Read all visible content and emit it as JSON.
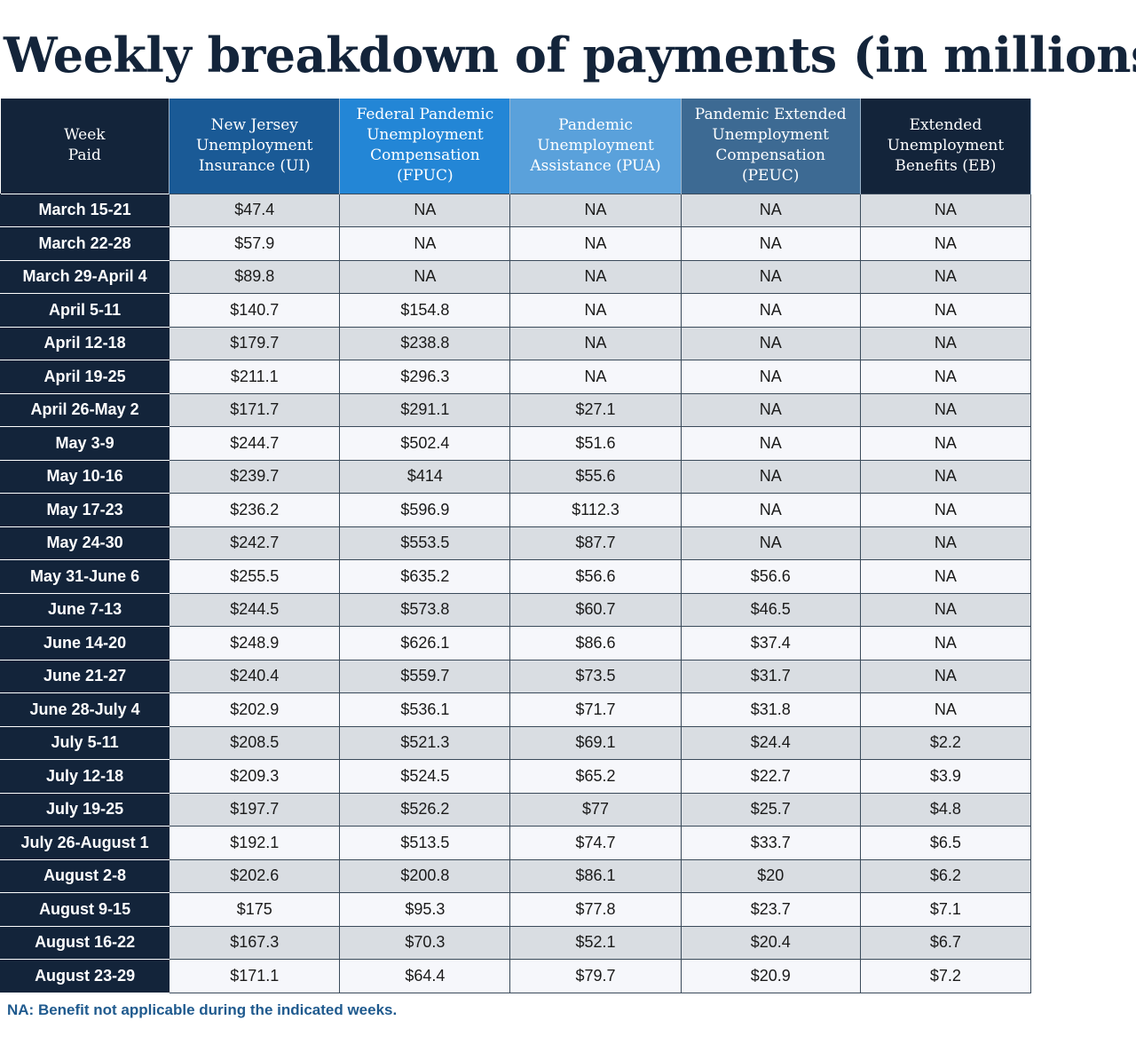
{
  "title": "Weekly breakdown of payments (in millions)",
  "footnote": "NA: Benefit not applicable during the indicated weeks.",
  "colors": {
    "navy": "#13243a",
    "nj": "#1a5a96",
    "fpuc": "#2386d6",
    "pua": "#5aa1db",
    "peuc": "#3d6a93",
    "row_alt": "#d9dde2",
    "row_light": "#f6f7fb",
    "footnote": "#1f5a8e"
  },
  "chart_data": {
    "type": "table",
    "title": "Weekly breakdown of payments (in millions)",
    "columns": [
      "Week\nPaid",
      "New Jersey\nUnemployment\nInsurance (UI)",
      "Federal Pandemic\nUnemployment\nCompensation\n(FPUC)",
      "Pandemic\nUnemployment\nAssistance (PUA)",
      "Pandemic Extended\nUnemployment\nCompensation\n(PEUC)",
      "Extended\nUnemployment\nBenefits (EB)"
    ],
    "rows": [
      [
        "March 15-21",
        "$47.4",
        "NA",
        "NA",
        "NA",
        "NA"
      ],
      [
        "March 22-28",
        "$57.9",
        "NA",
        "NA",
        "NA",
        "NA"
      ],
      [
        "March 29-April 4",
        "$89.8",
        "NA",
        "NA",
        "NA",
        "NA"
      ],
      [
        "April 5-11",
        "$140.7",
        "$154.8",
        "NA",
        "NA",
        "NA"
      ],
      [
        "April 12-18",
        "$179.7",
        "$238.8",
        "NA",
        "NA",
        "NA"
      ],
      [
        "April 19-25",
        "$211.1",
        "$296.3",
        "NA",
        "NA",
        "NA"
      ],
      [
        "April 26-May 2",
        "$171.7",
        "$291.1",
        "$27.1",
        "NA",
        "NA"
      ],
      [
        "May 3-9",
        "$244.7",
        "$502.4",
        "$51.6",
        "NA",
        "NA"
      ],
      [
        "May 10-16",
        "$239.7",
        "$414",
        "$55.6",
        "NA",
        "NA"
      ],
      [
        "May 17-23",
        "$236.2",
        "$596.9",
        "$112.3",
        "NA",
        "NA"
      ],
      [
        "May 24-30",
        "$242.7",
        "$553.5",
        "$87.7",
        "NA",
        "NA"
      ],
      [
        "May 31-June 6",
        "$255.5",
        "$635.2",
        "$56.6",
        "$56.6",
        "NA"
      ],
      [
        "June 7-13",
        "$244.5",
        "$573.8",
        "$60.7",
        "$46.5",
        "NA"
      ],
      [
        "June 14-20",
        "$248.9",
        "$626.1",
        "$86.6",
        "$37.4",
        "NA"
      ],
      [
        "June 21-27",
        "$240.4",
        "$559.7",
        "$73.5",
        "$31.7",
        "NA"
      ],
      [
        "June 28-July 4",
        "$202.9",
        "$536.1",
        "$71.7",
        "$31.8",
        "NA"
      ],
      [
        "July 5-11",
        "$208.5",
        "$521.3",
        "$69.1",
        "$24.4",
        "$2.2"
      ],
      [
        "July 12-18",
        "$209.3",
        "$524.5",
        "$65.2",
        "$22.7",
        "$3.9"
      ],
      [
        "July 19-25",
        "$197.7",
        "$526.2",
        "$77",
        "$25.7",
        "$4.8"
      ],
      [
        "July 26-August 1",
        "$192.1",
        "$513.5",
        "$74.7",
        "$33.7",
        "$6.5"
      ],
      [
        "August 2-8",
        "$202.6",
        "$200.8",
        "$86.1",
        "$20",
        "$6.2"
      ],
      [
        "August 9-15",
        "$175",
        "$95.3",
        "$77.8",
        "$23.7",
        "$7.1"
      ],
      [
        "August 16-22",
        "$167.3",
        "$70.3",
        "$52.1",
        "$20.4",
        "$6.7"
      ],
      [
        "August 23-29",
        "$171.1",
        "$64.4",
        "$79.7",
        "$20.9",
        "$7.2"
      ]
    ]
  }
}
